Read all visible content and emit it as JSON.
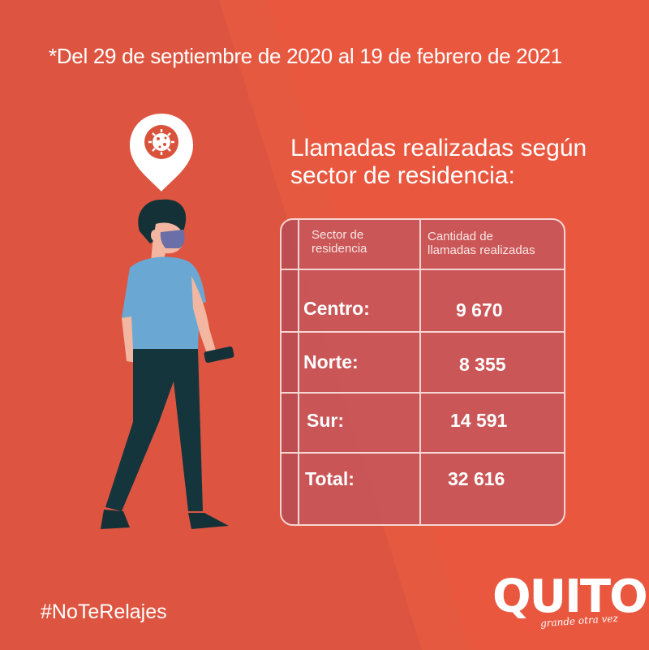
{
  "date_range": "*Del 29 de septiembre de 2020 al 19 de febrero de 2021",
  "headline": {
    "line1": "Llamadas realizadas según",
    "line2": "sector de residencia:"
  },
  "table": {
    "header_sector": [
      "Sector de",
      "residencia"
    ],
    "header_cantidad": [
      "Cantidad de",
      "llamadas realizadas"
    ],
    "rows": [
      {
        "label": "Centro:",
        "value": "9 670"
      },
      {
        "label": "Norte:",
        "value": "8 355"
      },
      {
        "label": "Sur:",
        "value": "14 591"
      },
      {
        "label": "Total:",
        "value": "32 616"
      }
    ]
  },
  "hashtag": "#NoTeRelajes",
  "logo": {
    "wordmark": "QUITO",
    "tagline": "grande otra vez"
  },
  "colors": {
    "background": "#e9573f",
    "diagonal_panel": "#d9533c",
    "table_fill": "#c6565c",
    "text": "#ffffff",
    "shirt": "#6aa8d3",
    "pants": "#15353d",
    "mask": "#6a6fa8"
  },
  "icons": [
    "virus-location-pin-icon",
    "person-with-mask-illustration",
    "phone-icon"
  ]
}
